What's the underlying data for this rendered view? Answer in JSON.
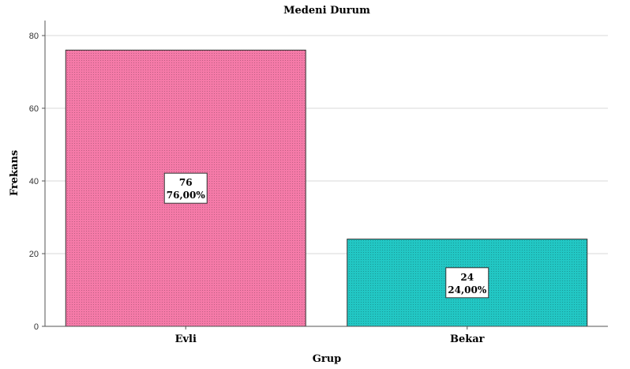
{
  "chart_data": {
    "type": "bar",
    "title": "Medeni Durum",
    "xlabel": "Grup",
    "ylabel": "Frekans",
    "categories": [
      "Evli",
      "Bekar"
    ],
    "values": [
      76,
      24
    ],
    "percent_labels": [
      "76,00%",
      "24,00%"
    ],
    "ylim": [
      0,
      84
    ],
    "yticks": [
      0,
      20,
      40,
      60,
      80
    ],
    "grid": true,
    "colors": [
      "#f57aa8",
      "#22c7c4"
    ]
  }
}
